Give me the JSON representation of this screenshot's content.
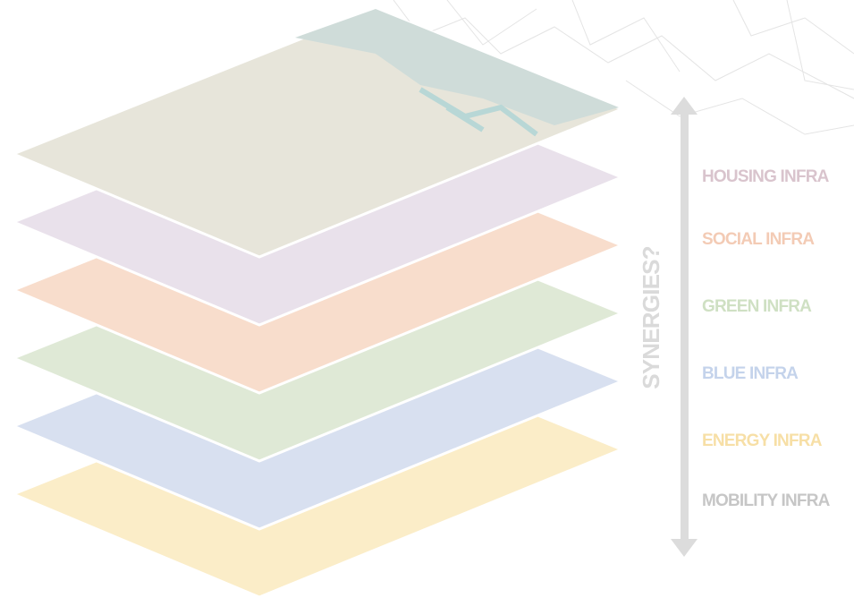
{
  "diagram": {
    "annotation": "SYNERGIES?",
    "layers": [
      {
        "label": "HOUSING INFRA"
      },
      {
        "label": "SOCIAL INFRA"
      },
      {
        "label": "GREEN INFRA"
      },
      {
        "label": "BLUE INFRA"
      },
      {
        "label": "ENERGY INFRA"
      },
      {
        "label": "MOBILITY INFRA"
      }
    ]
  }
}
